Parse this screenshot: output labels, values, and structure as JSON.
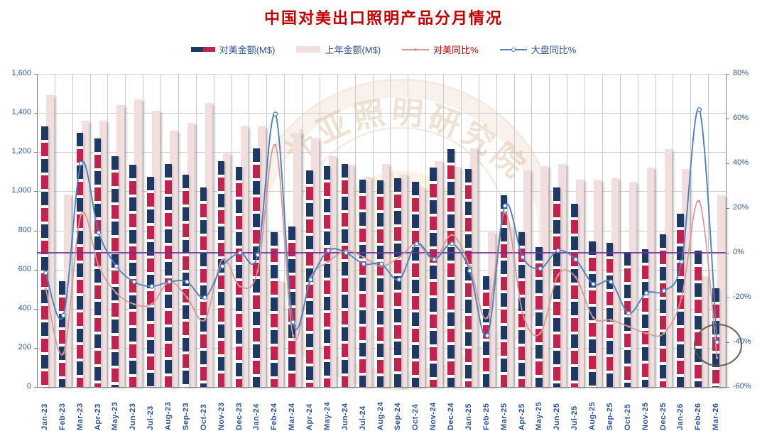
{
  "title": "中国对美出口照明产品分月情况",
  "colors": {
    "title": "#C00000",
    "axis_text": "#2F5597",
    "grid": "#CCCCCC",
    "axis_line": "#808080",
    "bar_navy": "#1F3864",
    "bar_crimson": "#C0234F",
    "bar_pink": "#F2DEDE",
    "line_red": "#D99694",
    "line_blue": "#4F81BD",
    "zero_line_purple": "#7030A0",
    "annotation_stroke": "#5B5243",
    "watermark_sepia": "#D2A679",
    "watermark_cream": "#F8ECD4"
  },
  "legend": {
    "items": [
      {
        "label": "对美金额(M$)",
        "swatch": "bar-dashed",
        "text_color": "#2F5597"
      },
      {
        "label": "上年金额(M$)",
        "swatch": "bar-pink",
        "text_color": "#2F5597"
      },
      {
        "label": "对美同比%",
        "swatch": "line-red",
        "text_color": "#C00000"
      },
      {
        "label": "大盘同比%",
        "swatch": "line-blue",
        "text_color": "#2F5597"
      }
    ]
  },
  "watermark": {
    "cn": "光亚照明研究院",
    "en": "GUANGYA ACADEMY LIGHTING"
  },
  "chart_data": {
    "type": "combo",
    "categories": [
      "Jan-23",
      "Feb-23",
      "Mar-23",
      "Apr-23",
      "May-23",
      "Jun-23",
      "Jul-23",
      "Aug-23",
      "Sep-23",
      "Oct-23",
      "Nov-23",
      "Dec-23",
      "Jan-24",
      "Feb-24",
      "Mar-24",
      "Apr-24",
      "May-24",
      "Jun-24",
      "Jul-24",
      "Aug-24",
      "Sep-24",
      "Oct-24",
      "Nov-24",
      "Dec-24",
      "Jan-25",
      "Feb-25",
      "Mar-25",
      "Apr-25",
      "May-25",
      "Jun-25",
      "Jul-25",
      "Aug-25",
      "Sep-25",
      "Oct-25",
      "Nov-25",
      "Dec-25",
      "Jan-26",
      "Feb-26",
      "Mar-26"
    ],
    "series": [
      {
        "name": "对美金额(M$)",
        "type": "bar",
        "style": "dashed-navy-crimson",
        "axis": "left",
        "values": [
          1330,
          540,
          1300,
          1270,
          1180,
          1135,
          1075,
          1140,
          1085,
          1020,
          1155,
          1125,
          1220,
          790,
          820,
          1105,
          1130,
          1140,
          1060,
          1055,
          1065,
          1050,
          1120,
          1215,
          1115,
          565,
          980,
          790,
          715,
          1020,
          935,
          745,
          735,
          690,
          705,
          780,
          885,
          695,
          505
        ]
      },
      {
        "name": "上年金额(M$)",
        "type": "bar",
        "style": "solid-pink",
        "axis": "left",
        "values": [
          1490,
          985,
          1360,
          1360,
          1440,
          1470,
          1410,
          1310,
          1350,
          1450,
          1195,
          1330,
          1330,
          540,
          1300,
          1270,
          1180,
          1135,
          1075,
          1140,
          1085,
          1020,
          1155,
          1125,
          1220,
          790,
          820,
          1105,
          1130,
          1140,
          1060,
          1055,
          1065,
          1050,
          1120,
          1215,
          1115,
          565,
          980
        ]
      },
      {
        "name": "对美同比%",
        "type": "line",
        "axis": "right",
        "marker": "dot",
        "values": [
          -16,
          -45,
          17,
          -6,
          -18,
          -23,
          -23,
          -13,
          -20,
          -30,
          -3,
          -15,
          -8,
          48,
          -37,
          -11,
          -4,
          1,
          -2,
          -6,
          -2,
          4,
          -3,
          8,
          -6,
          -29,
          18,
          -27,
          -36,
          -10,
          -11,
          -29,
          -30,
          -33,
          -36,
          -36,
          -20,
          23,
          -47
        ]
      },
      {
        "name": "大盘同比%",
        "type": "line",
        "axis": "right",
        "marker": "circle",
        "values": [
          -9,
          -28,
          40,
          9,
          -6,
          -13,
          -15,
          -13,
          -13,
          -20,
          -6,
          0,
          -1,
          62,
          -31,
          -12,
          1,
          0,
          -5,
          -5,
          -12,
          4,
          -3,
          4,
          -8,
          -37,
          21,
          -2,
          -7,
          1,
          -3,
          -14,
          -13,
          -27,
          -18,
          -17,
          -4,
          64,
          -40
        ]
      }
    ],
    "left_axis": {
      "min": 0,
      "max": 1600,
      "step": 200,
      "ticks": [
        "0",
        "200",
        "400",
        "600",
        "800",
        "1,000",
        "1,200",
        "1,400",
        "1,600"
      ]
    },
    "right_axis": {
      "min": -60,
      "max": 80,
      "step": 20,
      "ticks": [
        "-60%",
        "-40%",
        "-20%",
        "0%",
        "20%",
        "40%",
        "60%",
        "80%"
      ]
    },
    "zero_line": {
      "value_pct": 0
    },
    "annotation": {
      "shape": "ellipse",
      "month": "Mar-26",
      "around": "last red and blue data points"
    },
    "legend_position": "top",
    "grid": "both"
  }
}
